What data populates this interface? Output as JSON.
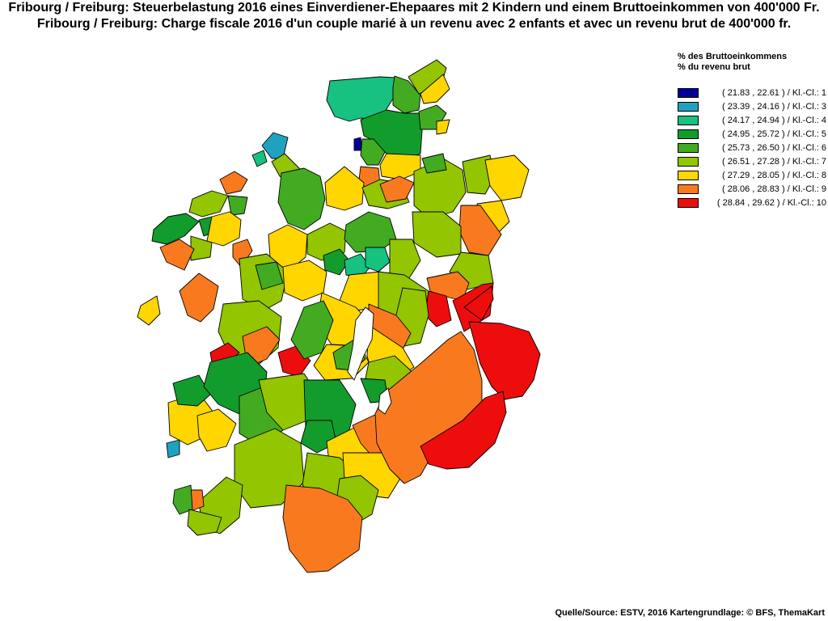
{
  "title": {
    "line_de": "Fribourg / Freiburg: Steuerbelastung 2016 eines Einverdiener-Ehepaares mit 2 Kindern und einem Bruttoeinkommen von 400'000 Fr.",
    "line_fr": "Fribourg / Freiburg: Charge fiscale 2016 d'un couple marié à un revenu avec 2 enfants et avec un revenu brut de 400'000 fr."
  },
  "legend": {
    "heading_de": "% des Bruttoeinkommens",
    "heading_fr": "% du revenu brut",
    "classes": [
      {
        "label": "( 21.83 , 22.61 ) / Kl.-Cl.: 1",
        "color": "#000099"
      },
      {
        "label": "( 23.39 , 24.16 ) / Kl.-Cl.: 3",
        "color": "#1fa2bf"
      },
      {
        "label": "( 24.17 , 24.94 ) / Kl.-Cl.: 4",
        "color": "#17c17f"
      },
      {
        "label": "( 24.95 , 25.72 ) / Kl.-Cl.: 5",
        "color": "#119c2c"
      },
      {
        "label": "( 25.73 , 26.50 ) / Kl.-Cl.: 6",
        "color": "#43ab22"
      },
      {
        "label": "( 26.51 , 27.28 ) / Kl.-Cl.: 7",
        "color": "#93c500"
      },
      {
        "label": "( 27.29 , 28.05 ) / Kl.-Cl.: 8",
        "color": "#ffd600"
      },
      {
        "label": "( 28.06 , 28.83 ) / Kl.-Cl.: 9",
        "color": "#f97a1e"
      },
      {
        "label": "( 28.84 , 29.62 ) / Kl.-Cl.: 10",
        "color": "#ee0d0d"
      }
    ]
  },
  "source": "Quelle/Source: ESTV, 2016 Kartengrundlage: © BFS, ThemaKart"
}
